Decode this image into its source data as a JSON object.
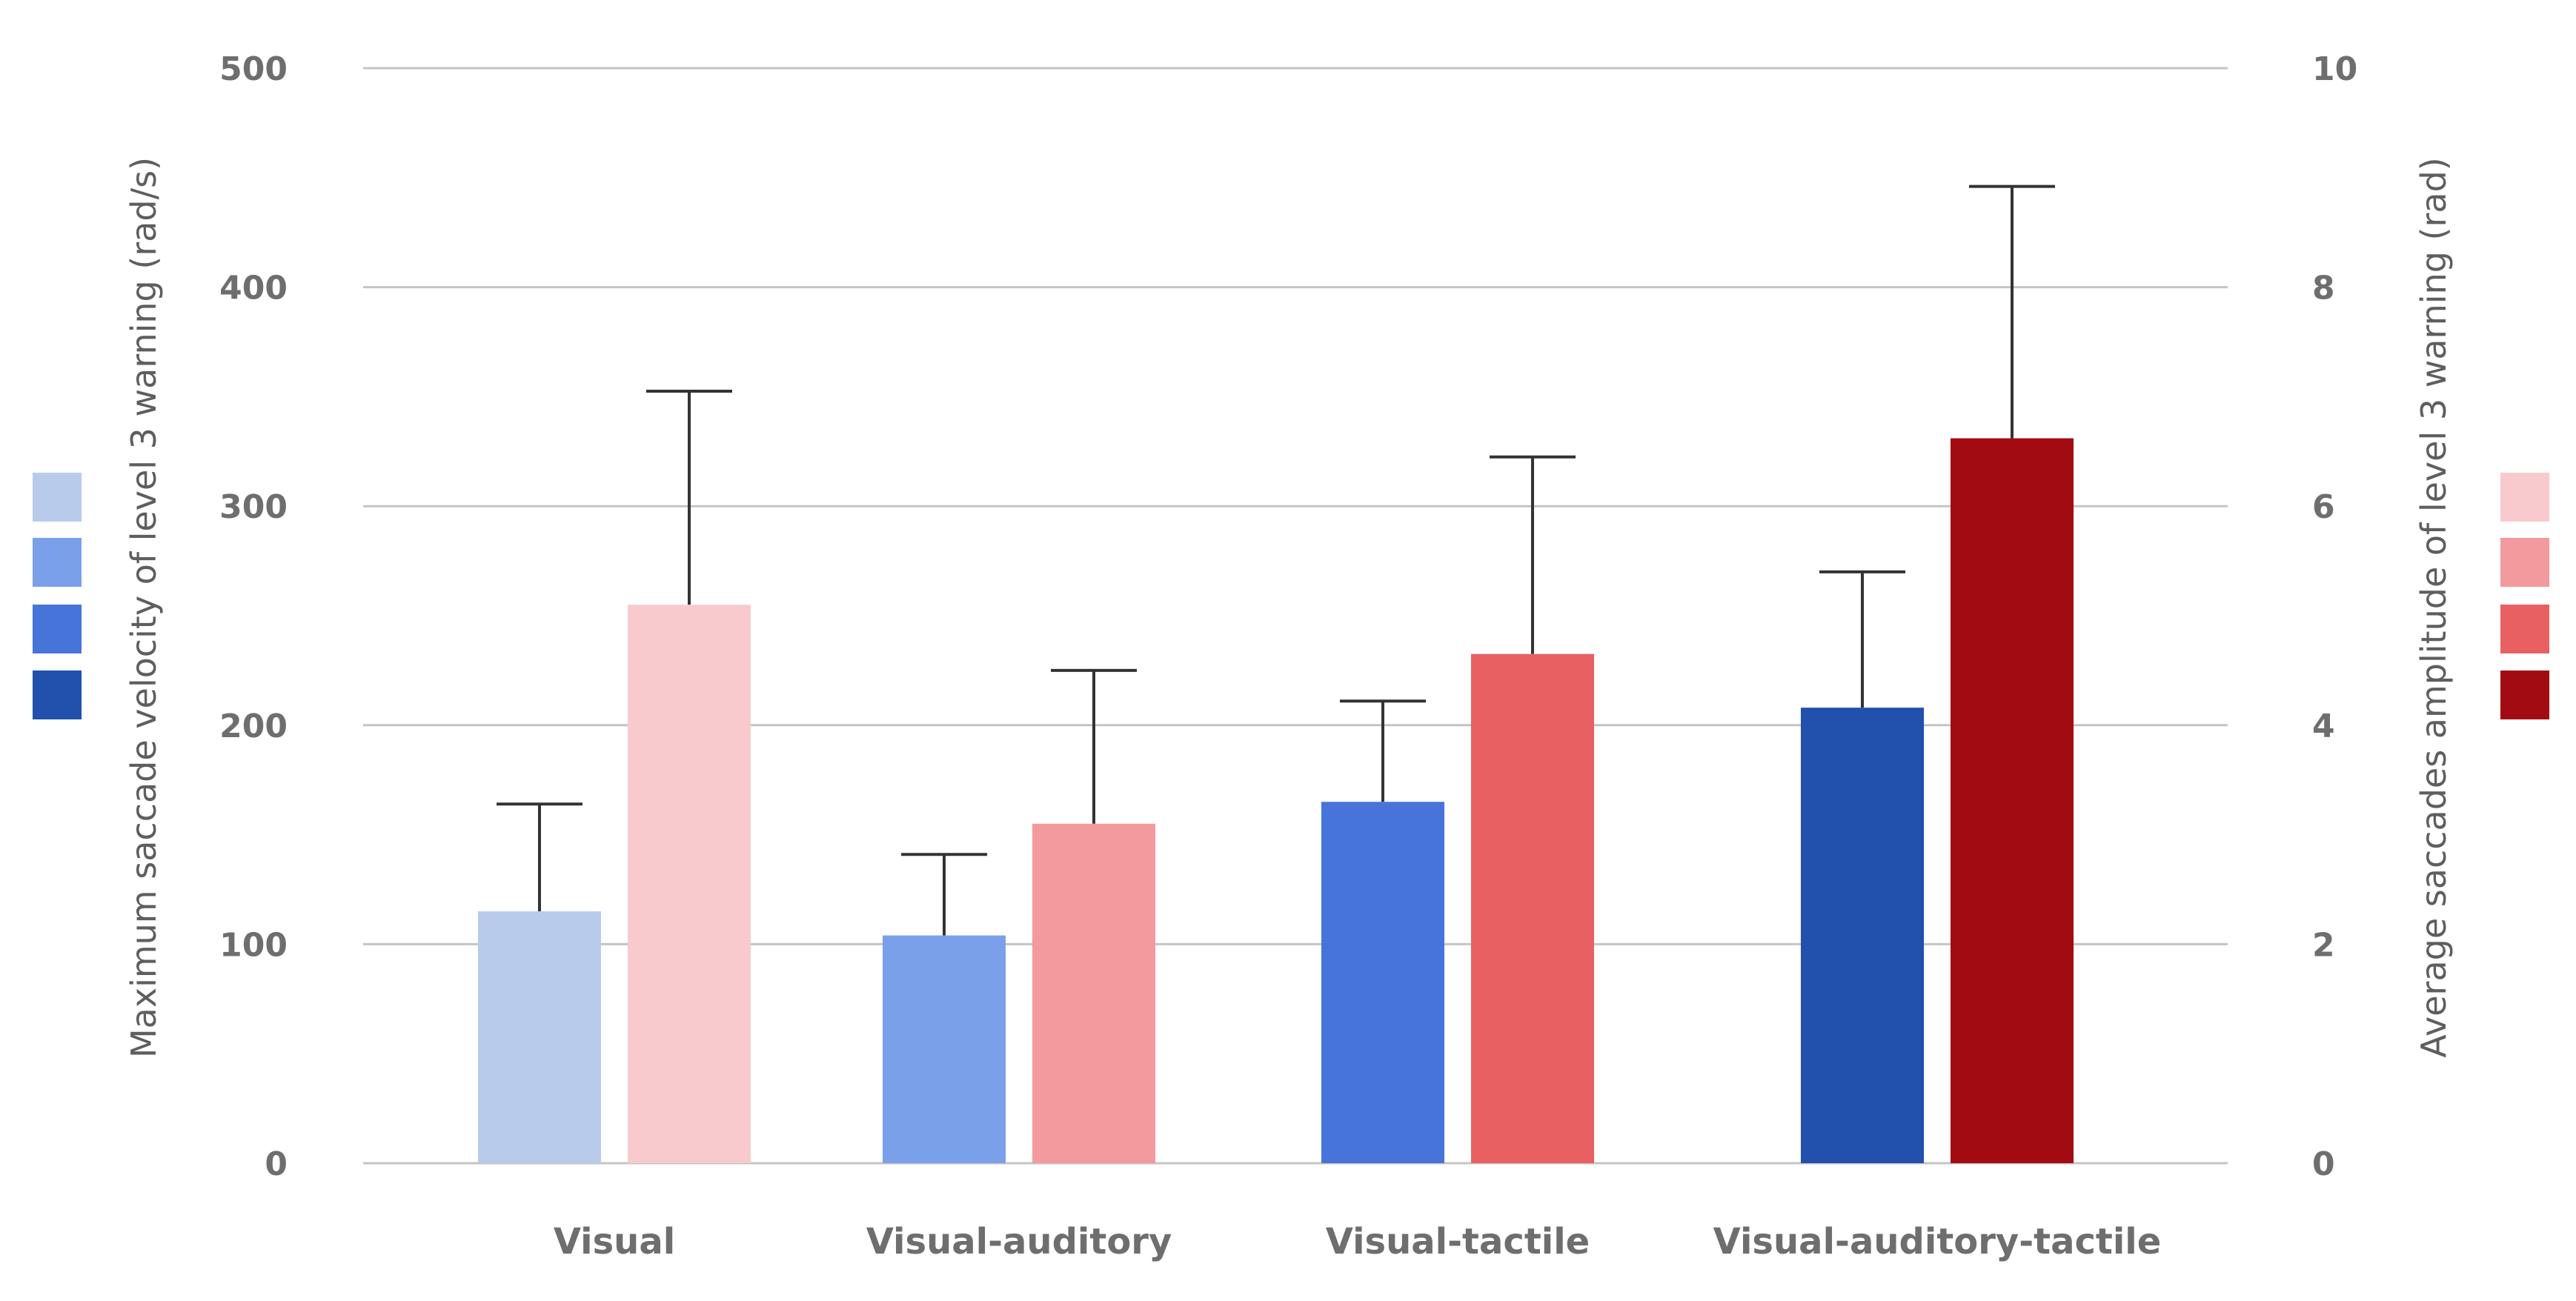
{
  "chart_data": {
    "type": "bar",
    "categories": [
      "Visual",
      "Visual-auditory",
      "Visual-tactile",
      "Visual-auditory-tactile"
    ],
    "left_axis": {
      "label": "Maximum saccade velocity of level 3 warning (rad/s)",
      "range": [
        0,
        500
      ],
      "ticks": [
        "0",
        "100",
        "200",
        "300",
        "400",
        "500"
      ]
    },
    "right_axis": {
      "label": "Average saccades amplitude of level 3 warning (rad)",
      "range": [
        0,
        10
      ],
      "ticks": [
        "0",
        "2",
        "4",
        "6",
        "8",
        "10"
      ]
    },
    "series": [
      {
        "name": "Maximum saccade velocity",
        "axis": "left",
        "values": [
          115,
          104,
          165,
          208
        ],
        "errors": [
          49,
          37,
          46,
          62
        ],
        "colors": [
          "#b9cbeb",
          "#7ba0ea",
          "#4674d9",
          "#2150ad"
        ]
      },
      {
        "name": "Average saccades amplitude",
        "axis": "right",
        "values": [
          5.1,
          3.1,
          4.65,
          6.62
        ],
        "errors": [
          1.95,
          1.4,
          1.8,
          2.3
        ],
        "colors": [
          "#f9cacd",
          "#f29a9d",
          "#e86062",
          "#a20b12"
        ]
      }
    ],
    "grid": true,
    "legend": "swatches-left-and-right"
  }
}
